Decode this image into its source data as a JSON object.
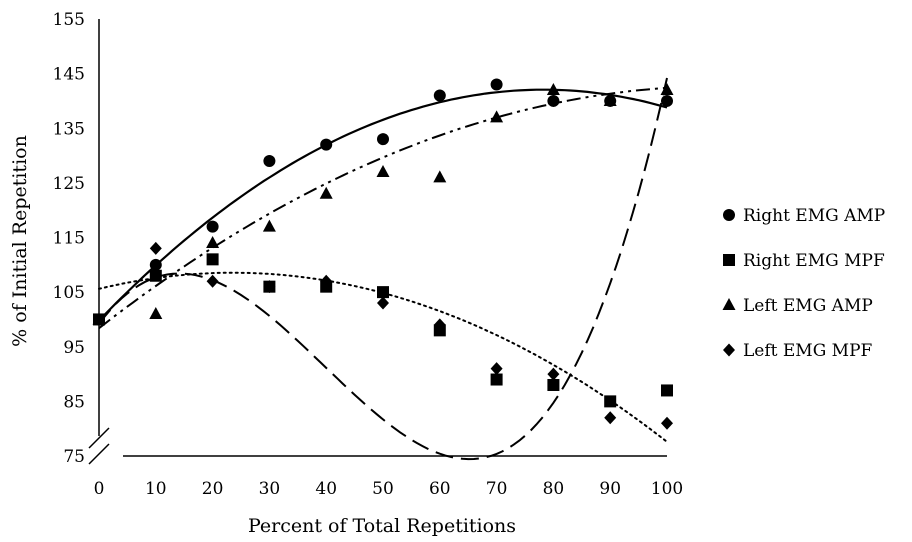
{
  "chart_data": {
    "type": "scatter",
    "xlabel": "Percent of Total Repetitions",
    "ylabel": "% of Initial Repetition",
    "xlim": [
      0,
      100
    ],
    "ylim": [
      75,
      155
    ],
    "x_ticks": [
      "0",
      "10",
      "20",
      "30",
      "40",
      "50",
      "60",
      "70",
      "80",
      "90",
      "100"
    ],
    "y_ticks": [
      "75",
      "85",
      "95",
      "105",
      "115",
      "125",
      "135",
      "145",
      "155"
    ],
    "y_axis_break": true,
    "grid": false,
    "legend_position": "right",
    "colors": {
      "ink": "#000000",
      "background": "#ffffff"
    },
    "series": [
      {
        "name": "Right EMG AMP",
        "marker": "circle",
        "trendline": "solid",
        "x": [
          0,
          10,
          20,
          30,
          40,
          50,
          60,
          70,
          80,
          90,
          100
        ],
        "y": [
          100,
          110,
          117,
          129,
          132,
          133,
          141,
          143,
          140,
          140,
          140
        ],
        "fit": [
          99.8,
          1.08,
          -0.0069
        ]
      },
      {
        "name": "Right EMG MPF",
        "marker": "square",
        "trendline": "long-dash",
        "x": [
          0,
          10,
          20,
          30,
          40,
          50,
          60,
          70,
          80,
          90,
          100
        ],
        "y": [
          100,
          108,
          111,
          106,
          106,
          105,
          98,
          89,
          88,
          85,
          87
        ],
        "fit": [
          99.2,
          1.4,
          -0.06,
          0.000495,
          1e-07
        ]
      },
      {
        "name": "Left EMG AMP",
        "marker": "triangle",
        "trendline": "dash-dot-dot",
        "x": [
          0,
          10,
          20,
          30,
          40,
          50,
          60,
          70,
          80,
          90,
          100
        ],
        "y": [
          100,
          101,
          114,
          117,
          123,
          127,
          126,
          137,
          142,
          140,
          142
        ],
        "fit": [
          98.4,
          0.81,
          -0.0037
        ]
      },
      {
        "name": "Left EMG MPF",
        "marker": "diamond",
        "trendline": "dotted",
        "x": [
          0,
          10,
          20,
          30,
          40,
          50,
          60,
          70,
          80,
          90,
          100
        ],
        "y": [
          100,
          113,
          107,
          106,
          107,
          103,
          99,
          91,
          90,
          82,
          81
        ],
        "fit": [
          105.6,
          0.25,
          -0.0053
        ]
      }
    ]
  }
}
